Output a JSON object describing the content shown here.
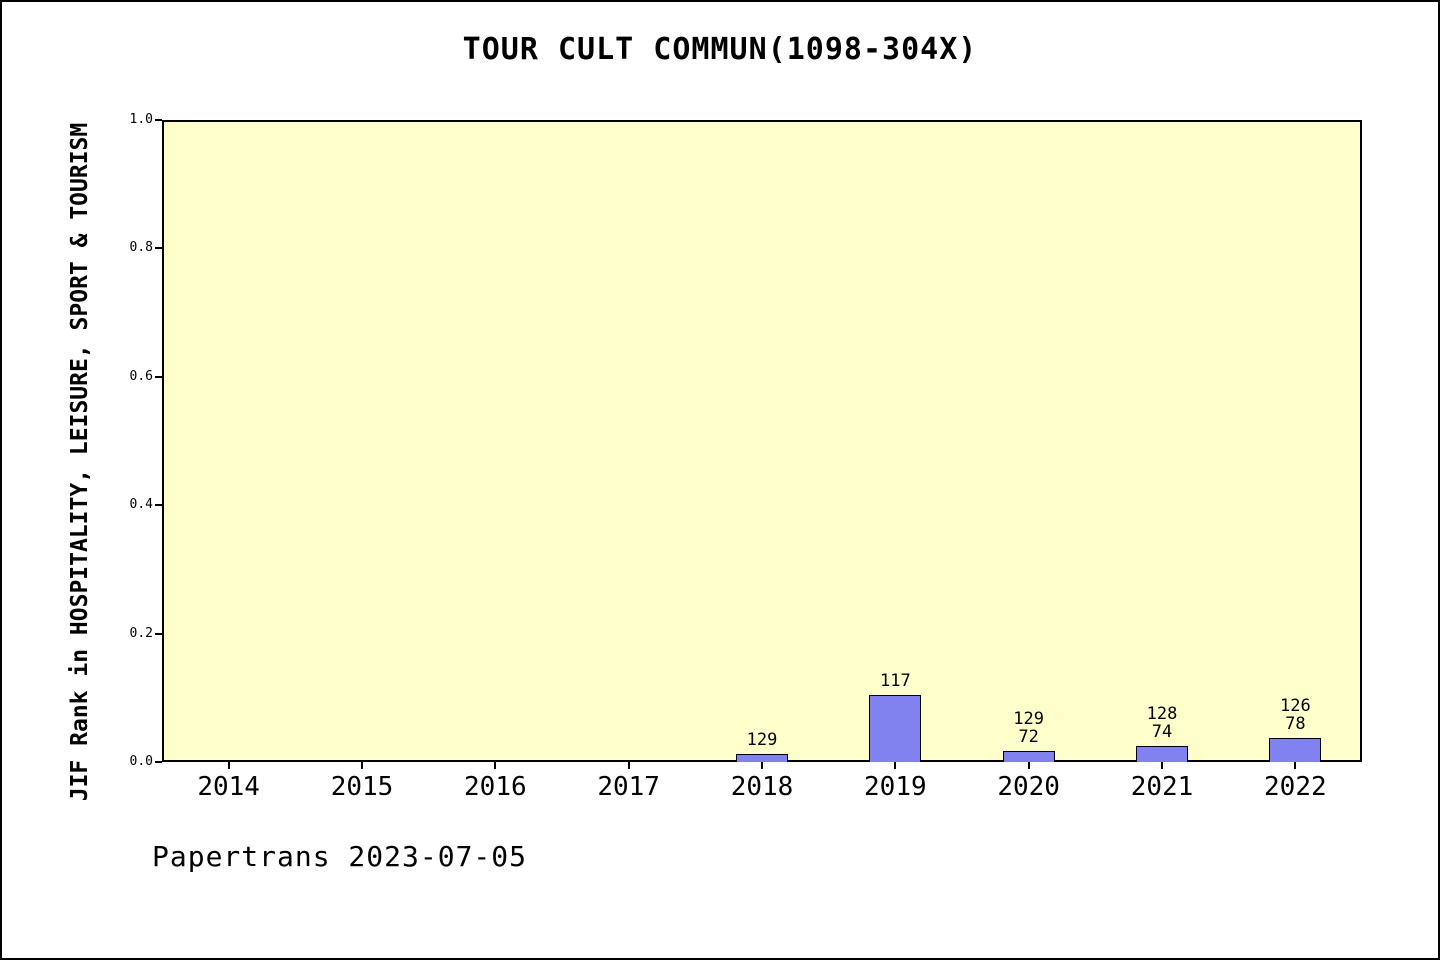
{
  "title": "TOUR CULT COMMUN(1098-304X)",
  "footer": "Papertrans 2023-07-05",
  "chart_data": {
    "type": "bar",
    "title": "TOUR CULT COMMUN(1098-304X)",
    "xlabel": "",
    "ylabel": "JIF Rank in HOSPITALITY, LEISURE, SPORT & TOURISM",
    "categories": [
      "2014",
      "2015",
      "2016",
      "2017",
      "2018",
      "2019",
      "2020",
      "2021",
      "2022"
    ],
    "values": [
      null,
      null,
      null,
      null,
      0.012,
      0.105,
      0.017,
      0.025,
      0.038
    ],
    "bar_labels": [
      [],
      [],
      [],
      [],
      [
        "129"
      ],
      [
        "117"
      ],
      [
        "129",
        "72"
      ],
      [
        "128",
        "74"
      ],
      [
        "126",
        "78"
      ]
    ],
    "ylim": [
      0.0,
      1.0
    ],
    "yticks": [
      "0.0",
      "0.2",
      "0.4",
      "0.6",
      "0.8",
      "1.0"
    ],
    "grid": false,
    "legend": null,
    "colors": {
      "bar_fill": "#8181f0",
      "bar_edge": "#000000",
      "plot_background": "#ffffcc",
      "axis": "#000000"
    }
  }
}
